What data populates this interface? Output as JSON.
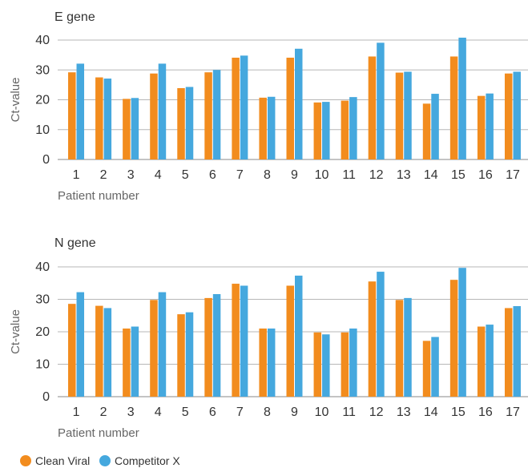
{
  "colors": {
    "series_a": "#f28c1e",
    "series_b": "#45a8de",
    "grid": "#b7b7b7",
    "axis": "#8a8a8a"
  },
  "legend": [
    "Clean Viral",
    "Competitor X"
  ],
  "chart_data": [
    {
      "type": "bar",
      "title": "E gene",
      "xlabel": "Patient number",
      "ylabel": "Ct-value",
      "ylim": [
        0,
        40
      ],
      "yticks": [
        0,
        10,
        20,
        30,
        40
      ],
      "grid": true,
      "legend_position": "bottom-left",
      "categories": [
        "1",
        "2",
        "3",
        "4",
        "5",
        "6",
        "7",
        "8",
        "9",
        "10",
        "11",
        "12",
        "13",
        "14",
        "15",
        "16",
        "17"
      ],
      "series": [
        {
          "name": "Clean Viral",
          "values": [
            29.2,
            27.5,
            20.3,
            28.8,
            23.9,
            29.2,
            34.1,
            20.7,
            34.1,
            19.1,
            19.7,
            34.5,
            29.1,
            18.7,
            34.5,
            21.3,
            28.8
          ]
        },
        {
          "name": "Competitor X",
          "values": [
            32.1,
            27.1,
            20.6,
            32.1,
            24.3,
            30.0,
            34.8,
            21.0,
            37.1,
            19.3,
            20.9,
            39.1,
            29.4,
            22.0,
            40.8,
            22.1,
            29.4
          ]
        }
      ]
    },
    {
      "type": "bar",
      "title": "N gene",
      "xlabel": "Patient number",
      "ylabel": "Ct-value",
      "ylim": [
        0,
        40
      ],
      "yticks": [
        0,
        10,
        20,
        30,
        40
      ],
      "grid": true,
      "legend_position": "bottom-left",
      "categories": [
        "1",
        "2",
        "3",
        "4",
        "5",
        "6",
        "7",
        "8",
        "9",
        "10",
        "11",
        "12",
        "13",
        "14",
        "15",
        "16",
        "17"
      ],
      "series": [
        {
          "name": "Clean Viral",
          "values": [
            28.6,
            28.0,
            21.0,
            29.8,
            25.4,
            30.4,
            34.8,
            21.0,
            34.2,
            19.8,
            19.8,
            35.5,
            29.8,
            17.2,
            36.0,
            21.6,
            27.3
          ]
        },
        {
          "name": "Competitor X",
          "values": [
            32.2,
            27.3,
            21.6,
            32.2,
            26.0,
            31.6,
            34.2,
            21.0,
            37.3,
            19.2,
            21.0,
            38.5,
            30.4,
            18.4,
            39.7,
            22.2,
            27.9
          ]
        }
      ]
    }
  ]
}
